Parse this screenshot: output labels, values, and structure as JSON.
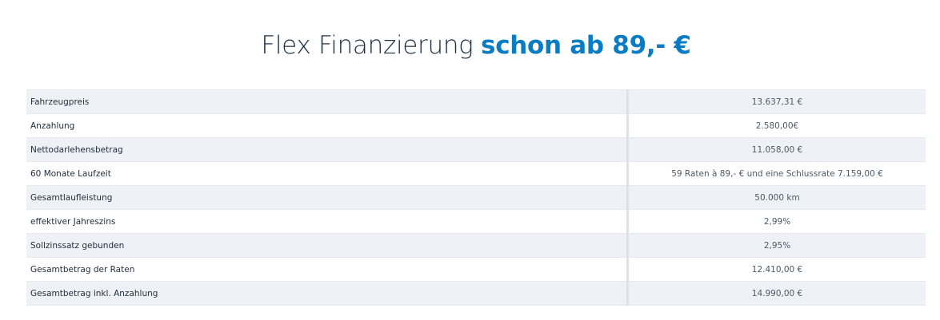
{
  "headline": {
    "prefix": "Flex Finanzierung ",
    "accent": "schon ab 89,- €"
  },
  "rows": [
    {
      "label": "Fahrzeugpreis",
      "value": "13.637,31 €"
    },
    {
      "label": "Anzahlung",
      "value": "2.580,00€"
    },
    {
      "label": "Nettodarlehensbetrag",
      "value": "11.058,00 €"
    },
    {
      "label": "60 Monate Laufzeit",
      "value": "59 Raten à 89,- € und eine Schlussrate 7.159,00 €"
    },
    {
      "label": "Gesamtlaufleistung",
      "value": "50.000 km"
    },
    {
      "label": "effektiver Jahreszins",
      "value": "2,99%"
    },
    {
      "label": "Sollzinssatz gebunden",
      "value": "2,95%"
    },
    {
      "label": "Gesamtbetrag der Raten",
      "value": "12.410,00 €"
    },
    {
      "label": "Gesamtbetrag inkl. Anzahlung",
      "value": "14.990,00 €"
    }
  ],
  "colors": {
    "accent": "#0a7cc4",
    "row_shaded": "#eef1f5"
  }
}
